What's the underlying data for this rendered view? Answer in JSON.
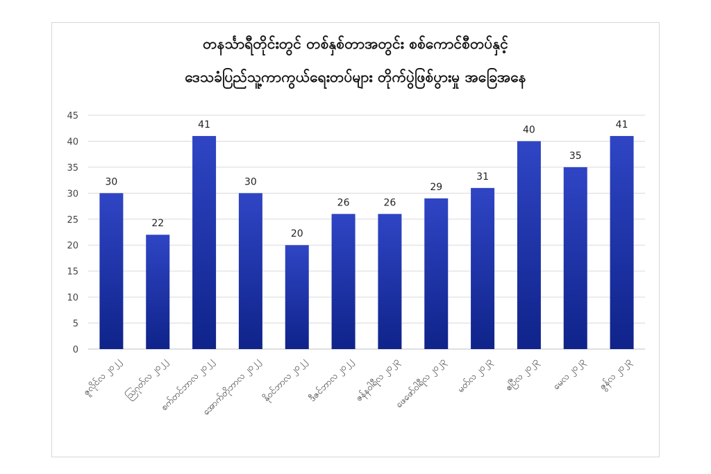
{
  "chart_data": {
    "type": "bar",
    "title": "တနင်္သာရီတိုင်းတွင် တစ်နှစ်တာအတွင်း စစ်ကောင်စီတပ်နှင့်",
    "subtitle": "ဒေသခံပြည်သူ့ကာကွယ်ရေးတပ်များ တိုက်ပွဲဖြစ်ပွားမှု အခြေအနေ",
    "categories": [
      "ဇူလိုင်လ ၂၀၂၂",
      "ဩဂုတ်လ ၂၀၂၂",
      "စက်တင်ဘာလ ၂၀၂၂",
      "အောက်တိုဘာလ ၂၀၂၂",
      "နိုဝင်ဘာလ ၂၀၂၂",
      "ဒီဇင်ဘာလ ၂၀၂၂",
      "ဇန်နဝါရီလ ၂၀၂၃",
      "ဖေဖော်ဝါရီလ ၂၀၂၃",
      "မတ်လ ၂၀၂၃",
      "ဧပြီလ ၂၀၂၃",
      "မေလ ၂၀၂၃",
      "ဇွန်လ ၂၀၂၃"
    ],
    "values": [
      30,
      22,
      41,
      30,
      20,
      26,
      26,
      29,
      31,
      40,
      35,
      41
    ],
    "ylim": [
      0,
      45
    ],
    "yticks": [
      0,
      5,
      10,
      15,
      20,
      25,
      30,
      35,
      40,
      45
    ],
    "xlabel": "",
    "ylabel": "",
    "grid": true,
    "data_labels": true,
    "legend": "none",
    "colors": {
      "bar_top": "#2f45c4",
      "bar_bottom": "#0f238a",
      "grid": "#d9d9d9"
    }
  }
}
